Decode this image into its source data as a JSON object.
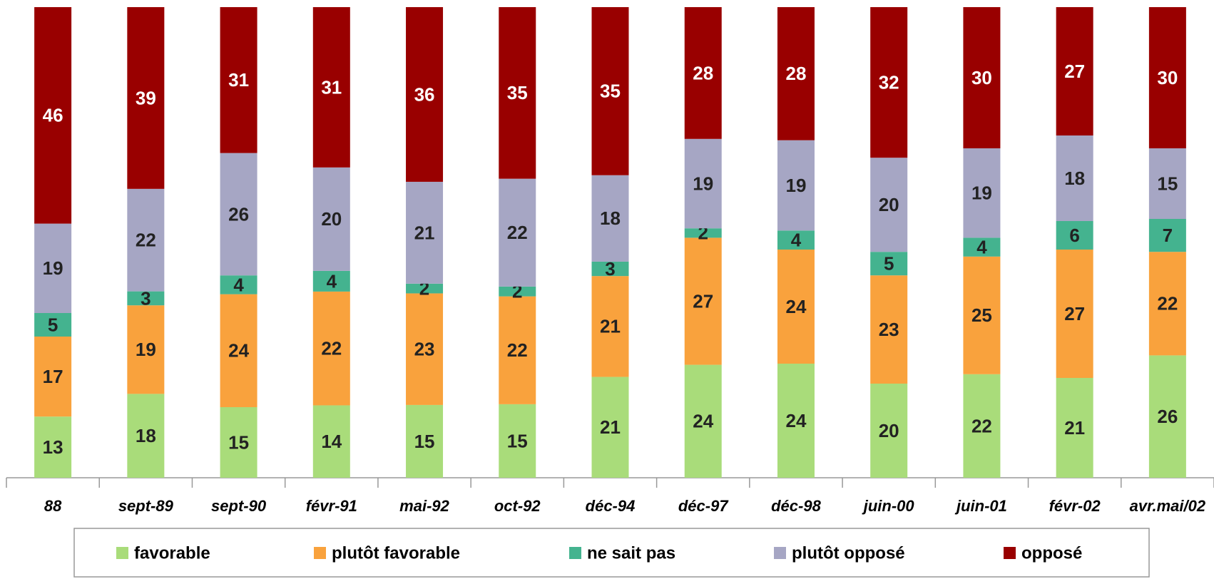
{
  "chart_data": {
    "type": "bar",
    "stacked": "percent",
    "categories": [
      "88",
      "sept-89",
      "sept-90",
      "févr-91",
      "mai-92",
      "oct-92",
      "déc-94",
      "déc-97",
      "déc-98",
      "juin-00",
      "juin-01",
      "févr-02",
      "avr.mai/02"
    ],
    "series": [
      {
        "name": "favorable",
        "color": "#a9dc7a",
        "label_color": "#222222",
        "values": [
          13,
          18,
          15,
          14,
          15,
          15,
          21,
          24,
          24,
          20,
          22,
          21,
          26
        ]
      },
      {
        "name": "plutôt favorable",
        "color": "#f9a23d",
        "label_color": "#222222",
        "values": [
          17,
          19,
          24,
          22,
          23,
          22,
          21,
          27,
          24,
          23,
          25,
          27,
          22
        ]
      },
      {
        "name": "ne sait pas",
        "color": "#44b38f",
        "label_color": "#222222",
        "values": [
          5,
          3,
          4,
          4,
          2,
          2,
          3,
          2,
          4,
          5,
          4,
          6,
          7
        ]
      },
      {
        "name": "plutôt opposé",
        "color": "#a6a6c4",
        "label_color": "#222222",
        "values": [
          19,
          22,
          26,
          20,
          21,
          22,
          18,
          19,
          19,
          20,
          19,
          18,
          15
        ]
      },
      {
        "name": "opposé",
        "color": "#990000",
        "label_color": "#ffffff",
        "values": [
          46,
          39,
          31,
          31,
          36,
          35,
          35,
          28,
          28,
          32,
          30,
          27,
          30
        ]
      }
    ],
    "legend": "bottom"
  }
}
